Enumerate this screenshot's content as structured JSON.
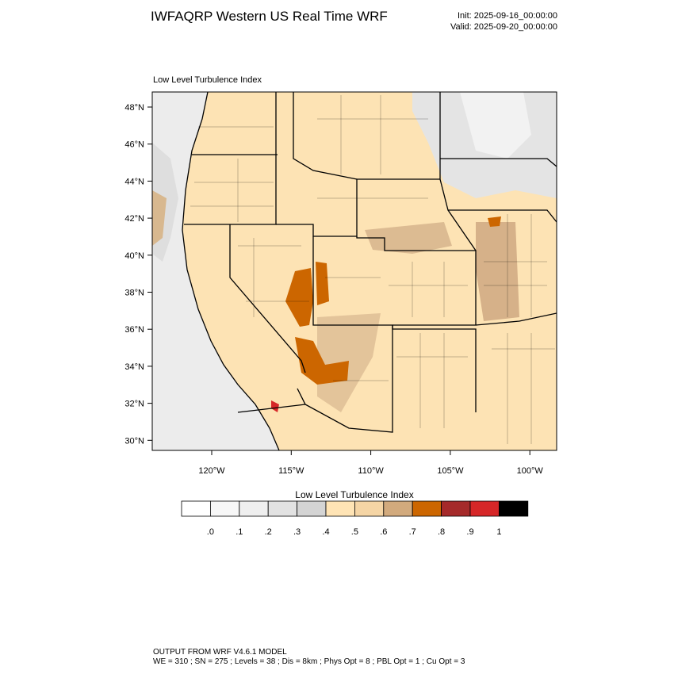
{
  "header": {
    "title": "IWFAQRP Western US Real Time WRF",
    "init": "Init: 2025-09-16_00:00:00",
    "valid": "Valid: 2025-09-20_00:00:00"
  },
  "map": {
    "title": "Low Level Turbulence Index",
    "lat_labels": [
      "48°N",
      "46°N",
      "44°N",
      "42°N",
      "40°N",
      "38°N",
      "36°N",
      "34°N",
      "32°N",
      "30°N"
    ],
    "lon_labels": [
      "120°W",
      "115°W",
      "110°W",
      "105°W",
      "100°W"
    ]
  },
  "colorbar": {
    "title": "Low Level Turbulence Index",
    "colors": [
      "#ffffff",
      "#f7f7f7",
      "#efefef",
      "#e2e2e2",
      "#d4d4d4",
      "#ffe4b5",
      "#f5d5a5",
      "#d2aa7d",
      "#cc6600",
      "#a52a2a",
      "#d62728",
      "#000000"
    ],
    "ticks": [
      {
        "value": 0,
        "label": ".0"
      },
      {
        "value": 0.1,
        "label": ".1"
      },
      {
        "value": 0.2,
        "label": ".2"
      },
      {
        "value": 0.3,
        "label": ".3"
      },
      {
        "value": 0.4,
        "label": ".4"
      },
      {
        "value": 0.5,
        "label": ".5"
      },
      {
        "value": 0.6,
        "label": ".6"
      },
      {
        "value": 0.7,
        "label": ".7"
      },
      {
        "value": 0.8,
        "label": ".8"
      },
      {
        "value": 0.9,
        "label": ".9"
      },
      1
    ]
  },
  "footer": {
    "line1": "OUTPUT FROM WRF V4.6.1 MODEL",
    "line2": "WE = 310 ; SN = 275 ; Levels = 38 ; Dis = 8km ; Phys Opt = 8 ; PBL Opt = 1 ; Cu Opt = 3"
  }
}
